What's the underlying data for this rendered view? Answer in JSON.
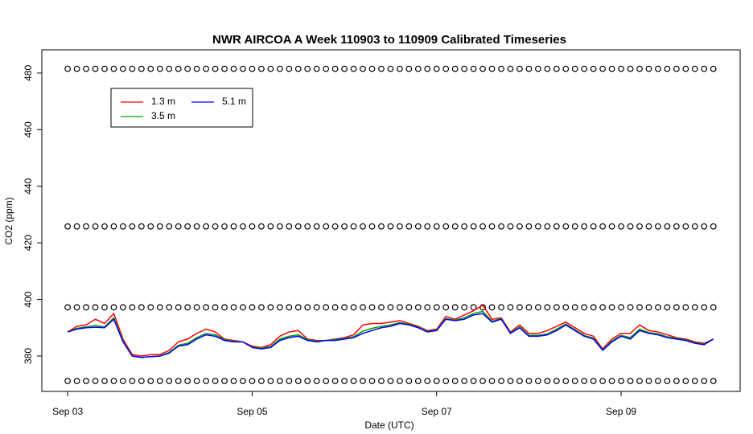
{
  "chart_data": {
    "type": "line",
    "title": "NWR AIRCOA A  Week 110903 to 110909  Calibrated Timeseries",
    "xlabel": "Date (UTC)",
    "ylabel": "CO2 (ppm)",
    "xlim": [
      -0.28,
      7.29
    ],
    "ylim": [
      367.5,
      488.2
    ],
    "xticks": [
      {
        "value": 0,
        "label": "Sep 03"
      },
      {
        "value": 2,
        "label": "Sep 05"
      },
      {
        "value": 4,
        "label": "Sep 07"
      },
      {
        "value": 6,
        "label": "Sep 09"
      }
    ],
    "yticks": [
      380,
      400,
      420,
      440,
      460,
      480
    ],
    "legend": "topleft",
    "x": [
      0,
      0.1,
      0.2,
      0.3,
      0.4,
      0.5,
      0.6,
      0.7,
      0.8,
      0.9,
      1,
      1.1,
      1.2,
      1.3,
      1.4,
      1.5,
      1.6,
      1.7,
      1.8,
      1.9,
      2,
      2.1,
      2.2,
      2.3,
      2.4,
      2.5,
      2.6,
      2.7,
      2.8,
      2.9,
      3,
      3.1,
      3.2,
      3.3,
      3.4,
      3.5,
      3.6,
      3.7,
      3.8,
      3.9,
      4,
      4.1,
      4.2,
      4.3,
      4.4,
      4.5,
      4.6,
      4.7,
      4.8,
      4.9,
      5,
      5.1,
      5.2,
      5.3,
      5.4,
      5.5,
      5.6,
      5.7,
      5.8,
      5.9,
      6,
      6.1,
      6.2,
      6.3,
      6.4,
      6.5,
      6.6,
      6.7,
      6.8,
      6.9,
      7
    ],
    "series": [
      {
        "mode": "points",
        "color": "#000000",
        "values": [
          481.5,
          481.5,
          481.5,
          481.5,
          481.5,
          481.5,
          481.5,
          481.5,
          481.5,
          481.5,
          481.5,
          481.5,
          481.5,
          481.5,
          481.5,
          481.5,
          481.5,
          481.5,
          481.5,
          481.5,
          481.5,
          481.5,
          481.5,
          481.5,
          481.5,
          481.5,
          481.5,
          481.5,
          481.5,
          481.5,
          481.5,
          481.5,
          481.5,
          481.5,
          481.5,
          481.5,
          481.5,
          481.5,
          481.5,
          481.5,
          481.5,
          481.5,
          481.5,
          481.5,
          481.5,
          481.5,
          481.5,
          481.5,
          481.5,
          481.5,
          481.5,
          481.5,
          481.5,
          481.5,
          481.5,
          481.5,
          481.5,
          481.5,
          481.5,
          481.5,
          481.5,
          481.5,
          481.5,
          481.5,
          481.5,
          481.5,
          481.5,
          481.5,
          481.5,
          481.5,
          481.5
        ]
      },
      {
        "mode": "points",
        "color": "#000000",
        "values": [
          425.8,
          425.8,
          425.8,
          425.8,
          425.8,
          425.8,
          425.8,
          425.8,
          425.8,
          425.8,
          425.8,
          425.8,
          425.8,
          425.8,
          425.8,
          425.8,
          425.8,
          425.8,
          425.8,
          425.8,
          425.8,
          425.8,
          425.8,
          425.8,
          425.8,
          425.8,
          425.8,
          425.8,
          425.8,
          425.8,
          425.8,
          425.8,
          425.8,
          425.8,
          425.8,
          425.8,
          425.8,
          425.8,
          425.8,
          425.8,
          425.8,
          425.8,
          425.8,
          425.8,
          425.8,
          425.8,
          425.8,
          425.8,
          425.8,
          425.8,
          425.8,
          425.8,
          425.8,
          425.8,
          425.8,
          425.8,
          425.8,
          425.8,
          425.8,
          425.8,
          425.8,
          425.8,
          425.8,
          425.8,
          425.8,
          425.8,
          425.8,
          425.8,
          425.8,
          425.8,
          425.8
        ]
      },
      {
        "mode": "points",
        "color": "#000000",
        "values": [
          397.2,
          397.2,
          397.2,
          397.2,
          397.2,
          397.2,
          397.2,
          397.2,
          397.2,
          397.2,
          397.2,
          397.2,
          397.2,
          397.2,
          397.2,
          397.2,
          397.2,
          397.2,
          397.2,
          397.2,
          397.2,
          397.2,
          397.2,
          397.2,
          397.2,
          397.2,
          397.2,
          397.2,
          397.2,
          397.2,
          397.2,
          397.2,
          397.2,
          397.2,
          397.2,
          397.2,
          397.2,
          397.2,
          397.2,
          397.2,
          397.2,
          397.2,
          397.2,
          397.2,
          397.2,
          397.2,
          397.2,
          397.2,
          397.2,
          397.2,
          397.2,
          397.2,
          397.2,
          397.2,
          397.2,
          397.2,
          397.2,
          397.2,
          397.2,
          397.2,
          397.2,
          397.2,
          397.2,
          397.2,
          397.2,
          397.2,
          397.2,
          397.2,
          397.2,
          397.2,
          397.2
        ]
      },
      {
        "mode": "points",
        "color": "#000000",
        "values": [
          371.2,
          371.2,
          371.2,
          371.2,
          371.2,
          371.2,
          371.2,
          371.2,
          371.2,
          371.2,
          371.2,
          371.2,
          371.2,
          371.2,
          371.2,
          371.2,
          371.2,
          371.2,
          371.2,
          371.2,
          371.2,
          371.2,
          371.2,
          371.2,
          371.2,
          371.2,
          371.2,
          371.2,
          371.2,
          371.2,
          371.2,
          371.2,
          371.2,
          371.2,
          371.2,
          371.2,
          371.2,
          371.2,
          371.2,
          371.2,
          371.2,
          371.2,
          371.2,
          371.2,
          371.2,
          371.2,
          371.2,
          371.2,
          371.2,
          371.2,
          371.2,
          371.2,
          371.2,
          371.2,
          371.2,
          371.2,
          371.2,
          371.2,
          371.2,
          371.2,
          371.2,
          371.2,
          371.2,
          371.2,
          371.2,
          371.2,
          371.2,
          371.2,
          371.2,
          371.2,
          371.2
        ]
      },
      {
        "mode": "lines",
        "name": "1.3 m",
        "color": "#ff0000",
        "values": [
          388.5,
          390.5,
          391,
          393,
          391.5,
          395,
          386,
          380.5,
          380,
          380.5,
          380.5,
          382,
          385,
          386,
          388,
          389.5,
          388.5,
          386,
          385.5,
          385,
          383.5,
          383,
          384,
          387,
          388.5,
          389,
          386,
          385.5,
          385.5,
          386,
          386.5,
          387.5,
          391,
          391.5,
          391.5,
          392,
          392.5,
          391.5,
          390.5,
          389,
          389.5,
          394,
          393,
          394.5,
          396,
          398,
          393,
          393.5,
          388.5,
          391,
          388,
          388,
          389,
          390.5,
          392,
          390,
          388,
          387,
          382.5,
          386,
          388,
          388,
          391,
          389,
          388.5,
          387.5,
          386.5,
          386,
          385,
          384.5,
          386
        ]
      },
      {
        "mode": "lines",
        "name": "3.5 m",
        "color": "#00a000",
        "values": [
          388.5,
          389.8,
          390.3,
          390.8,
          390.3,
          393.5,
          385.3,
          380,
          379.5,
          379.8,
          380,
          381.3,
          383.8,
          384.5,
          386.5,
          388,
          387.5,
          385.8,
          385.2,
          385,
          383.2,
          382.8,
          383.3,
          386,
          387,
          387.5,
          385.8,
          385.2,
          385.5,
          385.8,
          386.2,
          386.8,
          388.8,
          389.8,
          390.5,
          391,
          391.8,
          391.2,
          390.2,
          388.7,
          389.2,
          393.2,
          392.7,
          393.5,
          395,
          395.8,
          392.3,
          393.2,
          388.2,
          390.3,
          387.3,
          387.3,
          387.8,
          389.5,
          391.3,
          389.3,
          387.3,
          386.3,
          382.2,
          385.3,
          387.3,
          386.5,
          389.5,
          388.3,
          387.8,
          386.8,
          386.2,
          385.7,
          384.7,
          384.2,
          386
        ]
      },
      {
        "mode": "lines",
        "name": "5.1 m",
        "color": "#0000ff",
        "values": [
          388.5,
          389.5,
          390,
          390.2,
          390,
          393,
          385,
          380,
          379.5,
          379.8,
          380,
          381,
          383.5,
          384,
          386,
          387.5,
          387,
          385.5,
          385,
          385,
          383,
          382.5,
          383,
          385.5,
          386.5,
          387,
          385.5,
          385,
          385.5,
          385.5,
          386,
          386.5,
          388,
          389,
          390,
          390.5,
          391.5,
          391,
          390,
          388.5,
          389,
          393,
          392.5,
          393,
          394.5,
          395,
          392,
          393,
          388,
          390,
          387,
          387,
          387.5,
          389,
          391,
          389,
          387,
          386,
          382,
          385,
          387,
          386,
          389,
          388,
          387.5,
          386.5,
          386,
          385.5,
          384.5,
          384,
          386
        ]
      }
    ]
  }
}
